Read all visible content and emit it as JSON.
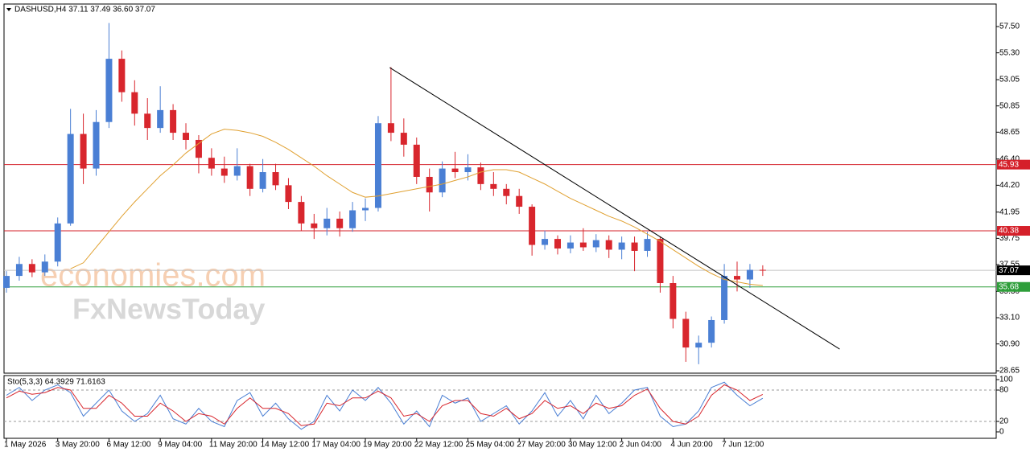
{
  "header": "DASHUSD,H4  37.11 37.49 36.60 37.07",
  "watermark": [
    "economies.com",
    "FxNewsToday"
  ],
  "chart_data": [
    {
      "type": "candlestick",
      "categories": [
        "1 May 2026",
        null,
        null,
        null,
        "3 May 20:00",
        null,
        null,
        null,
        "6 May 12:00",
        null,
        null,
        null,
        "9 May 04:00",
        null,
        null,
        null,
        "11 May 20:00",
        null,
        null,
        null,
        "14 May 12:00",
        null,
        null,
        null,
        "17 May 04:00",
        null,
        null,
        null,
        "19 May 20:00",
        null,
        null,
        null,
        "22 May 12:00",
        null,
        null,
        null,
        "25 May 04:00",
        null,
        null,
        null,
        "27 May 20:00",
        null,
        null,
        null,
        "30 May 12:00",
        null,
        null,
        null,
        "2 Jun 04:00",
        null,
        null,
        null,
        "4 Jun 20:00",
        null,
        null,
        null,
        "7 Jun 12:00",
        null,
        null,
        null
      ],
      "ohlc": [
        [
          35.6,
          37.0,
          35.2,
          36.6
        ],
        [
          36.6,
          38.2,
          36.2,
          37.6
        ],
        [
          37.6,
          38.0,
          36.5,
          36.9
        ],
        [
          36.9,
          38.4,
          36.6,
          37.8
        ],
        [
          37.8,
          41.5,
          37.4,
          41.0
        ],
        [
          41.0,
          50.6,
          40.8,
          48.5
        ],
        [
          48.5,
          50.2,
          44.3,
          45.6
        ],
        [
          45.6,
          50.5,
          45.0,
          49.5
        ],
        [
          49.5,
          57.8,
          49.0,
          54.8
        ],
        [
          54.8,
          55.5,
          51.2,
          52.0
        ],
        [
          52.0,
          53.0,
          49.2,
          50.2
        ],
        [
          50.2,
          51.5,
          48.0,
          49.0
        ],
        [
          49.0,
          52.5,
          48.6,
          50.5
        ],
        [
          50.5,
          51.0,
          48.0,
          48.6
        ],
        [
          48.6,
          49.4,
          47.2,
          48.0
        ],
        [
          48.0,
          48.4,
          45.2,
          46.5
        ],
        [
          46.5,
          47.3,
          45.0,
          45.6
        ],
        [
          45.6,
          46.6,
          44.4,
          45.0
        ],
        [
          45.0,
          47.3,
          44.6,
          45.8
        ],
        [
          45.8,
          46.0,
          43.3,
          43.9
        ],
        [
          43.9,
          46.4,
          43.6,
          45.3
        ],
        [
          45.3,
          46.0,
          43.8,
          44.2
        ],
        [
          44.2,
          44.8,
          42.2,
          42.8
        ],
        [
          42.8,
          43.3,
          40.4,
          41.0
        ],
        [
          41.0,
          41.8,
          39.7,
          40.6
        ],
        [
          40.6,
          42.3,
          40.0,
          41.4
        ],
        [
          41.4,
          42.0,
          39.9,
          40.6
        ],
        [
          40.6,
          42.8,
          40.3,
          42.1
        ],
        [
          42.1,
          43.1,
          41.2,
          42.3
        ],
        [
          42.3,
          50.0,
          42.0,
          49.4
        ],
        [
          49.4,
          54.1,
          47.9,
          48.6
        ],
        [
          48.6,
          49.8,
          46.6,
          47.6
        ],
        [
          47.6,
          48.2,
          44.3,
          44.9
        ],
        [
          44.9,
          45.6,
          42.0,
          43.6
        ],
        [
          43.6,
          46.2,
          43.2,
          45.6
        ],
        [
          45.6,
          47.0,
          44.8,
          45.3
        ],
        [
          45.3,
          46.8,
          44.6,
          45.7
        ],
        [
          45.7,
          46.1,
          43.8,
          44.3
        ],
        [
          44.3,
          45.3,
          43.3,
          43.9
        ],
        [
          43.9,
          44.3,
          42.6,
          43.3
        ],
        [
          43.3,
          43.9,
          41.8,
          42.4
        ],
        [
          42.4,
          42.6,
          38.3,
          39.2
        ],
        [
          39.2,
          40.4,
          38.8,
          39.7
        ],
        [
          39.7,
          40.0,
          38.4,
          38.9
        ],
        [
          38.9,
          40.0,
          38.5,
          39.4
        ],
        [
          39.4,
          40.6,
          38.7,
          39.0
        ],
        [
          39.0,
          40.1,
          38.6,
          39.6
        ],
        [
          39.6,
          40.0,
          38.1,
          38.8
        ],
        [
          38.8,
          39.9,
          38.0,
          39.4
        ],
        [
          39.4,
          39.9,
          37.0,
          38.7
        ],
        [
          38.7,
          40.3,
          38.2,
          39.7
        ],
        [
          39.7,
          39.9,
          35.2,
          36.0
        ],
        [
          36.0,
          36.6,
          32.2,
          33.0
        ],
        [
          33.0,
          33.6,
          29.4,
          30.6
        ],
        [
          30.6,
          31.6,
          29.2,
          31.0
        ],
        [
          31.0,
          33.2,
          30.6,
          32.9
        ],
        [
          32.9,
          37.6,
          32.6,
          36.6
        ],
        [
          36.6,
          37.8,
          35.3,
          36.3
        ],
        [
          36.3,
          37.6,
          35.6,
          37.11
        ],
        [
          37.11,
          37.49,
          36.6,
          37.07
        ]
      ],
      "up_color": "#4a7fd4",
      "down_color": "#d8262d",
      "ma": {
        "color": "#e0a030",
        "values": [
          null,
          null,
          null,
          null,
          null,
          37.2,
          37.7,
          39.0,
          40.3,
          41.6,
          42.8,
          43.9,
          45.0,
          45.9,
          46.9,
          47.7,
          48.5,
          48.9,
          48.8,
          48.6,
          48.3,
          47.8,
          47.2,
          46.5,
          45.8,
          45.0,
          44.3,
          43.6,
          43.2,
          43.3,
          43.5,
          43.7,
          43.9,
          44.1,
          44.3,
          44.6,
          44.9,
          45.3,
          45.5,
          45.5,
          45.3,
          44.8,
          44.3,
          43.7,
          43.1,
          42.6,
          42.1,
          41.6,
          41.2,
          40.7,
          40.1,
          39.5,
          38.8,
          38.1,
          37.4,
          36.8,
          36.3,
          36.1,
          35.9,
          35.8
        ]
      },
      "levels": [
        {
          "value": 45.93,
          "color": "#d5202a",
          "label_color": "#d5202a"
        },
        {
          "value": 40.38,
          "color": "#d5202a",
          "label_color": "#d5202a"
        },
        {
          "value": 37.07,
          "color": "#c4c4c4",
          "label_color": "#000000"
        },
        {
          "value": 35.68,
          "color": "#2e9e3a",
          "label_color": "#2e9e3a"
        }
      ],
      "trendline": {
        "x": [
          29.9,
          65.0
        ],
        "y": [
          54.06,
          30.47
        ],
        "color": "#000000"
      },
      "ylim": [
        28.45,
        59.39
      ],
      "yticks": [
        {
          "value": 57.5,
          "label": "57.50"
        },
        {
          "value": 55.3,
          "label": "55.30"
        },
        53.05,
        50.85,
        48.65,
        {
          "value": 46.4,
          "label": "46.40"
        },
        {
          "value": 44.2,
          "label": "44.20"
        },
        41.95,
        39.75,
        37.55,
        {
          "value": 35.3,
          "label": "35.30"
        },
        {
          "value": 33.1,
          "label": "33.10"
        },
        {
          "value": 30.9,
          "label": "30.90"
        },
        28.65
      ]
    },
    {
      "type": "line",
      "title": "Sto(5,3,3) 64.3929 71.6163",
      "series": [
        {
          "color": "#4a7fd4",
          "values": [
            70,
            85,
            60,
            80,
            90,
            75,
            30,
            55,
            80,
            40,
            20,
            35,
            70,
            25,
            15,
            45,
            20,
            10,
            60,
            75,
            30,
            55,
            25,
            5,
            20,
            70,
            40,
            80,
            60,
            85,
            55,
            15,
            40,
            10,
            70,
            55,
            65,
            20,
            35,
            50,
            15,
            40,
            75,
            30,
            60,
            25,
            70,
            35,
            55,
            80,
            85,
            30,
            10,
            15,
            40,
            85,
            95,
            70,
            50,
            64.3929
          ]
        },
        {
          "color": "#d8262d",
          "values": [
            65,
            78,
            72,
            75,
            85,
            80,
            45,
            45,
            70,
            55,
            30,
            30,
            55,
            40,
            20,
            35,
            30,
            15,
            45,
            65,
            45,
            45,
            35,
            12,
            15,
            55,
            50,
            65,
            65,
            78,
            65,
            30,
            35,
            20,
            50,
            60,
            60,
            35,
            30,
            45,
            25,
            35,
            60,
            45,
            50,
            35,
            55,
            45,
            50,
            70,
            82,
            45,
            20,
            15,
            30,
            70,
            90,
            80,
            60,
            71.6163
          ]
        }
      ],
      "levels": [
        80,
        20
      ],
      "ylim": [
        -12.3,
        107.7
      ],
      "yticks": [
        100,
        80,
        20,
        0
      ]
    }
  ]
}
